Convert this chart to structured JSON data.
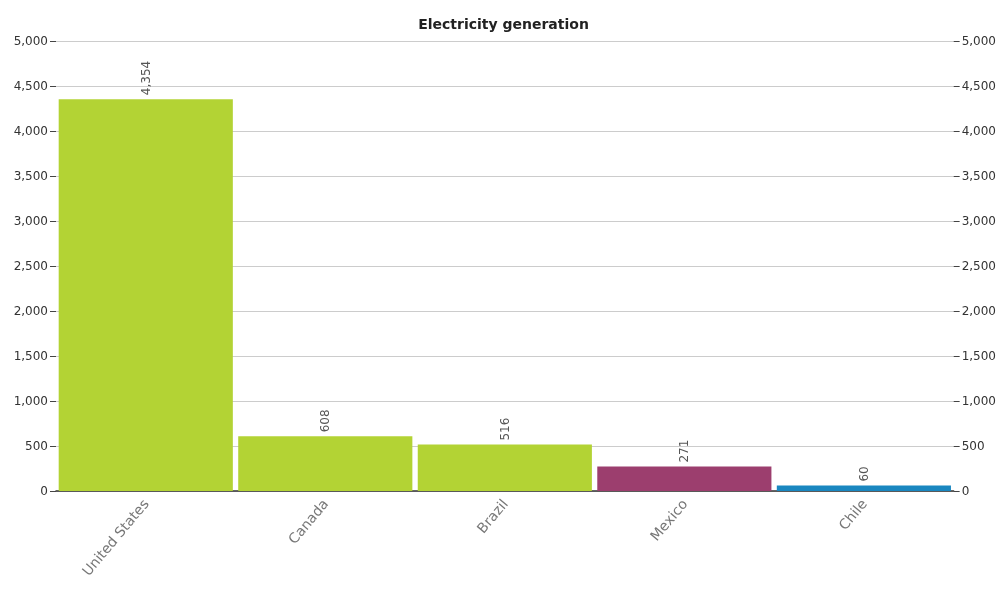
{
  "chart_data": {
    "type": "bar",
    "title": "Electricity generation",
    "categories": [
      "United States",
      "Canada",
      "Brazil",
      "Mexico",
      "Chile"
    ],
    "values": [
      4354,
      608,
      516,
      271,
      60
    ],
    "colors": [
      "#b3d334",
      "#b3d334",
      "#b3d334",
      "#9c3e6e",
      "#1a87c0"
    ],
    "value_labels": [
      "4,354",
      "608",
      "516",
      "271",
      "60"
    ],
    "ylim": [
      0,
      5000
    ],
    "yticks": [
      0,
      500,
      {
        "value": 1000,
        "label": "1,000"
      },
      {
        "value": 1500,
        "label": "1,500"
      },
      {
        "value": 2000,
        "label": "2,000"
      },
      {
        "value": 2500,
        "label": "2,500"
      },
      {
        "value": 3000,
        "label": "3,000"
      },
      {
        "value": 3500,
        "label": "3,500"
      },
      {
        "value": 4000,
        "label": "4,000"
      },
      {
        "value": 4500,
        "label": "4,500"
      },
      {
        "value": 5000,
        "label": "5,000"
      }
    ],
    "y2lim": [
      0,
      5000
    ],
    "y2ticks": [
      0,
      500,
      {
        "value": 1000,
        "label": "1,000"
      },
      {
        "value": 1500,
        "label": "1,500"
      },
      {
        "value": 2000,
        "label": "2,000"
      },
      {
        "value": 2500,
        "label": "2,500"
      },
      {
        "value": 3000,
        "label": "3,000"
      },
      {
        "value": 3500,
        "label": "3,500"
      },
      {
        "value": 4000,
        "label": "4,000"
      },
      {
        "value": 4500,
        "label": "4,500"
      },
      {
        "value": 5000,
        "label": "5,000"
      }
    ],
    "grid": "y"
  }
}
